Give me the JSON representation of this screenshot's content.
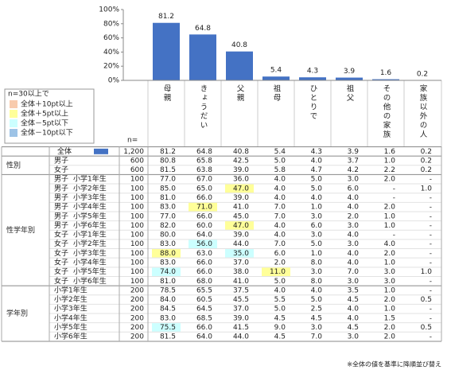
{
  "chart_data": {
    "type": "bar",
    "categories": [
      "母親",
      "きょうだい",
      "父親",
      "祖母",
      "ひとりで",
      "祖父",
      "その他の家族",
      "家族以外の人"
    ],
    "values": [
      81.2,
      64.8,
      40.8,
      5.4,
      4.3,
      3.9,
      1.6,
      0.2
    ],
    "color": "#4472c4",
    "ylim": [
      0,
      100
    ],
    "yticks": [
      {
        "value": 0,
        "label": "0%"
      },
      {
        "value": 20,
        "label": "20%"
      },
      {
        "value": 40,
        "label": "40%"
      },
      {
        "value": 60,
        "label": "60%"
      },
      {
        "value": 80,
        "label": "80%"
      },
      {
        "value": 100,
        "label": "100%"
      }
    ]
  },
  "legend": {
    "title": "n=30以上で",
    "items": [
      {
        "label": "全体＋10pt以上",
        "color": "#f8cbad"
      },
      {
        "label": "全体＋5pt以上",
        "color": "#ffff99"
      },
      {
        "label": "全体－5pt以下",
        "color": "#ccffff"
      },
      {
        "label": "全体－10pt以下",
        "color": "#9dc3e6"
      }
    ]
  },
  "table": {
    "n_header": "n=",
    "sections": [
      {
        "rows": [
          {
            "label": "全体",
            "n": "1,200",
            "values": [
              "81.2",
              "64.8",
              "40.8",
              "5.4",
              "4.3",
              "3.9",
              "1.6",
              "0.2"
            ]
          }
        ]
      },
      {
        "label": "性別",
        "rows": [
          {
            "label": "男子",
            "n": "600",
            "values": [
              "80.8",
              "65.8",
              "42.5",
              "5.0",
              "4.0",
              "3.7",
              "1.0",
              "0.2"
            ]
          },
          {
            "label": "女子",
            "n": "600",
            "values": [
              "81.5",
              "63.8",
              "39.0",
              "5.8",
              "4.7",
              "4.2",
              "2.2",
              "0.2"
            ]
          }
        ]
      },
      {
        "label": "性学年別",
        "rows": [
          {
            "label": "男子",
            "sub": "小学1年生",
            "n": "100",
            "values": [
              "77.0",
              "67.0",
              "36.0",
              "4.0",
              "5.0",
              "3.0",
              "2.0",
              "-"
            ]
          },
          {
            "label": "男子",
            "sub": "小学2年生",
            "n": "100",
            "values": [
              "85.0",
              "65.0",
              "47.0",
              "4.0",
              "5.0",
              "6.0",
              "-",
              "1.0"
            ],
            "highlight": [
              [
                2,
                1
              ]
            ]
          },
          {
            "label": "男子",
            "sub": "小学3年生",
            "n": "100",
            "values": [
              "81.0",
              "66.0",
              "39.0",
              "4.0",
              "4.0",
              "4.0",
              "-",
              "-"
            ]
          },
          {
            "label": "男子",
            "sub": "小学4年生",
            "n": "100",
            "values": [
              "83.0",
              "71.0",
              "41.0",
              "7.0",
              "1.0",
              "4.0",
              "2.0",
              "-"
            ],
            "highlight": [
              [
                1,
                1
              ]
            ]
          },
          {
            "label": "男子",
            "sub": "小学5年生",
            "n": "100",
            "values": [
              "77.0",
              "66.0",
              "45.0",
              "7.0",
              "3.0",
              "2.0",
              "1.0",
              "-"
            ]
          },
          {
            "label": "男子",
            "sub": "小学6年生",
            "n": "100",
            "values": [
              "82.0",
              "60.0",
              "47.0",
              "4.0",
              "6.0",
              "3.0",
              "1.0",
              "-"
            ],
            "highlight": [
              [
                2,
                1
              ]
            ]
          },
          {
            "label": "女子",
            "sub": "小学1年生",
            "n": "100",
            "values": [
              "80.0",
              "64.0",
              "39.0",
              "4.0",
              "3.0",
              "4.0",
              "-",
              "-"
            ]
          },
          {
            "label": "女子",
            "sub": "小学2年生",
            "n": "100",
            "values": [
              "83.0",
              "56.0",
              "44.0",
              "7.0",
              "5.0",
              "3.0",
              "4.0",
              "-"
            ],
            "highlight": [
              [
                1,
                2
              ]
            ]
          },
          {
            "label": "女子",
            "sub": "小学3年生",
            "n": "100",
            "values": [
              "88.0",
              "63.0",
              "35.0",
              "6.0",
              "1.0",
              "4.0",
              "2.0",
              "-"
            ],
            "highlight": [
              [
                0,
                1
              ],
              [
                2,
                2
              ]
            ]
          },
          {
            "label": "女子",
            "sub": "小学4年生",
            "n": "100",
            "values": [
              "83.0",
              "66.0",
              "37.0",
              "2.0",
              "8.0",
              "4.0",
              "1.0",
              "-"
            ]
          },
          {
            "label": "女子",
            "sub": "小学5年生",
            "n": "100",
            "values": [
              "74.0",
              "66.0",
              "38.0",
              "11.0",
              "3.0",
              "7.0",
              "3.0",
              "1.0"
            ],
            "highlight": [
              [
                0,
                2
              ],
              [
                3,
                1
              ]
            ]
          },
          {
            "label": "女子",
            "sub": "小学6年生",
            "n": "100",
            "values": [
              "81.0",
              "68.0",
              "41.0",
              "5.0",
              "8.0",
              "3.0",
              "3.0",
              "-"
            ]
          }
        ]
      },
      {
        "label": "学年別",
        "rows": [
          {
            "label": "小学1年生",
            "n": "200",
            "values": [
              "78.5",
              "65.5",
              "37.5",
              "4.0",
              "4.0",
              "3.5",
              "1.0",
              "-"
            ]
          },
          {
            "label": "小学2年生",
            "n": "200",
            "values": [
              "84.0",
              "60.5",
              "45.5",
              "5.5",
              "5.0",
              "4.5",
              "2.0",
              "0.5"
            ]
          },
          {
            "label": "小学3年生",
            "n": "200",
            "values": [
              "84.5",
              "64.5",
              "37.0",
              "5.0",
              "2.5",
              "4.0",
              "1.0",
              "-"
            ]
          },
          {
            "label": "小学4年生",
            "n": "200",
            "values": [
              "83.0",
              "68.5",
              "39.0",
              "4.5",
              "4.5",
              "4.0",
              "1.5",
              "-"
            ]
          },
          {
            "label": "小学5年生",
            "n": "200",
            "values": [
              "75.5",
              "66.0",
              "41.5",
              "9.0",
              "3.0",
              "4.5",
              "2.0",
              "0.5"
            ],
            "highlight": [
              [
                0,
                2
              ]
            ]
          },
          {
            "label": "小学6年生",
            "n": "200",
            "values": [
              "81.5",
              "64.0",
              "44.0",
              "4.5",
              "7.0",
              "3.0",
              "2.0",
              "-"
            ]
          }
        ]
      }
    ]
  },
  "footnote": "※全体の値を基準に降順並び替え"
}
